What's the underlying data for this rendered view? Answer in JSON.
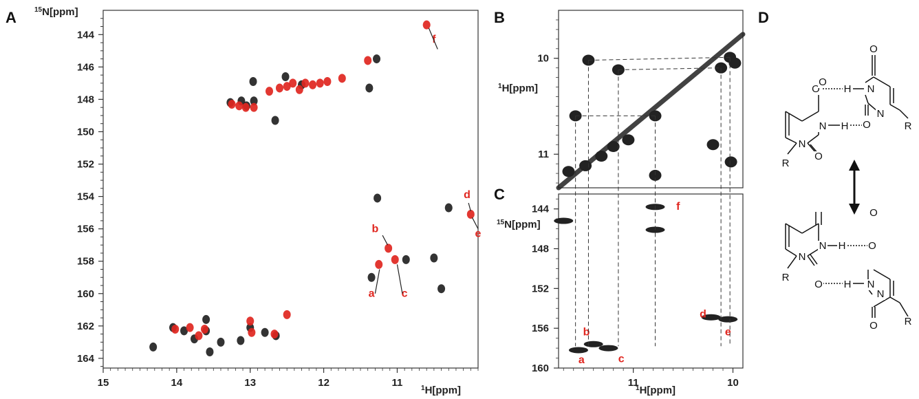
{
  "panels": {
    "A": "A",
    "B": "B",
    "C": "C",
    "D": "D"
  },
  "chart_data": [
    {
      "id": "A",
      "type": "scatter",
      "xlabel_sup": "1",
      "xlabel": "H[ppm]",
      "ylabel_sup": "15",
      "ylabel": "N[ppm]",
      "xlim": [
        15,
        9.9
      ],
      "ylim": [
        142.5,
        164.6
      ],
      "xticks": [
        15,
        14,
        13,
        12,
        11
      ],
      "yticks": [
        144,
        146,
        148,
        150,
        152,
        154,
        156,
        158,
        160,
        162,
        164
      ],
      "series": [
        {
          "color": "#222222",
          "points": [
            [
              13.27,
              148.2
            ],
            [
              13.12,
              148.1
            ],
            [
              13.05,
              148.4
            ],
            [
              12.96,
              146.9
            ],
            [
              12.95,
              148.1
            ],
            [
              12.66,
              149.3
            ],
            [
              12.52,
              146.6
            ],
            [
              12.3,
              147.1
            ],
            [
              11.38,
              147.3
            ],
            [
              11.28,
              145.5
            ],
            [
              11.27,
              154.1
            ],
            [
              10.88,
              157.9
            ],
            [
              10.5,
              157.8
            ],
            [
              10.4,
              159.7
            ],
            [
              10.3,
              154.7
            ],
            [
              14.32,
              163.3
            ],
            [
              14.05,
              162.1
            ],
            [
              13.9,
              162.3
            ],
            [
              13.76,
              162.8
            ],
            [
              13.6,
              161.6
            ],
            [
              13.6,
              162.3
            ],
            [
              13.4,
              163
            ],
            [
              13.13,
              162.9
            ],
            [
              13.0,
              162.1
            ],
            [
              12.8,
              162.4
            ],
            [
              12.65,
              162.6
            ],
            [
              13.55,
              163.6
            ],
            [
              11.35,
              159.0
            ]
          ]
        },
        {
          "color": "#e0261f",
          "points": [
            [
              13.25,
              148.3
            ],
            [
              13.15,
              148.4
            ],
            [
              13.06,
              148.5
            ],
            [
              12.95,
              148.5
            ],
            [
              12.74,
              147.5
            ],
            [
              12.6,
              147.3
            ],
            [
              12.5,
              147.2
            ],
            [
              12.42,
              147.0
            ],
            [
              12.33,
              147.4
            ],
            [
              12.25,
              147.0
            ],
            [
              12.15,
              147.1
            ],
            [
              12.05,
              147.0
            ],
            [
              11.95,
              146.9
            ],
            [
              11.75,
              146.7
            ],
            [
              11.4,
              145.6
            ],
            [
              10.6,
              143.4
            ],
            [
              11.12,
              157.2
            ],
            [
              11.25,
              158.2
            ],
            [
              11.03,
              157.9
            ],
            [
              10.0,
              155.1
            ],
            [
              14.02,
              162.2
            ],
            [
              13.82,
              162.1
            ],
            [
              13.7,
              162.6
            ],
            [
              13.62,
              162.2
            ],
            [
              13.0,
              161.7
            ],
            [
              12.98,
              162.4
            ],
            [
              12.67,
              162.5
            ],
            [
              12.5,
              161.3
            ]
          ]
        }
      ],
      "annotations": [
        {
          "label": "f",
          "x": 10.5,
          "y": 144.5
        },
        {
          "label": "d",
          "x": 10.05,
          "y": 154.1
        },
        {
          "label": "e",
          "x": 9.9,
          "y": 156.5
        },
        {
          "label": "b",
          "x": 11.3,
          "y": 156.2
        },
        {
          "label": "a",
          "x": 11.35,
          "y": 160.2
        },
        {
          "label": "c",
          "x": 10.9,
          "y": 160.2
        }
      ]
    },
    {
      "id": "B",
      "type": "scatter",
      "ylabel_sup": "1",
      "ylabel": "H[ppm]",
      "xlim": [
        11.75,
        9.9
      ],
      "ylim": [
        9.5,
        11.35
      ],
      "yticks": [
        10,
        11
      ],
      "diagonal": [
        [
          11.75,
          11.35
        ],
        [
          9.9,
          9.75
        ]
      ],
      "points": [
        [
          11.45,
          10.02
        ],
        [
          11.15,
          10.12
        ],
        [
          11.58,
          10.6
        ],
        [
          10.78,
          10.6
        ],
        [
          10.78,
          11.22
        ],
        [
          10.03,
          9.99
        ],
        [
          10.12,
          10.1
        ],
        [
          9.98,
          10.05
        ],
        [
          10.2,
          10.9
        ],
        [
          10.02,
          11.08
        ],
        [
          11.65,
          11.18
        ],
        [
          11.48,
          11.12
        ],
        [
          11.32,
          11.02
        ],
        [
          11.2,
          10.92
        ],
        [
          11.05,
          10.85
        ]
      ]
    },
    {
      "id": "C",
      "type": "scatter",
      "xlabel_sup": "1",
      "xlabel": "H[ppm]",
      "ylabel_sup": "15",
      "ylabel": "N[ppm]",
      "xlim": [
        11.75,
        9.9
      ],
      "ylim": [
        142.5,
        160
      ],
      "xticks": [
        11,
        10
      ],
      "yticks": [
        144,
        148,
        152,
        156,
        160
      ],
      "points": [
        [
          11.55,
          158.2
        ],
        [
          11.4,
          157.6
        ],
        [
          11.25,
          158.0
        ],
        [
          10.05,
          155.1
        ],
        [
          10.22,
          154.9
        ],
        [
          10.78,
          143.8
        ],
        [
          10.78,
          146.1
        ],
        [
          11.7,
          145.2
        ]
      ],
      "annotations": [
        {
          "label": "a",
          "x": 11.52,
          "y": 159.5
        },
        {
          "label": "b",
          "x": 11.47,
          "y": 156.7
        },
        {
          "label": "c",
          "x": 11.12,
          "y": 159.4
        },
        {
          "label": "f",
          "x": 10.55,
          "y": 144.1
        },
        {
          "label": "d",
          "x": 10.3,
          "y": 154.9
        },
        {
          "label": "e",
          "x": 10.05,
          "y": 156.7
        }
      ]
    }
  ],
  "links": [
    {
      "x": 11.45,
      "y_h": 10.02
    },
    {
      "x": 11.15,
      "y_h": 10.12
    },
    {
      "x": 11.58,
      "y_h": 10.6
    },
    {
      "x": 10.78,
      "y_h": 10.6
    },
    {
      "x": 10.12,
      "y_h": 10.1
    },
    {
      "x": 10.03,
      "y_h": 9.99
    }
  ],
  "structure": {
    "atoms": {
      "O": "O",
      "N": "N",
      "H": "H",
      "R": "R"
    }
  }
}
